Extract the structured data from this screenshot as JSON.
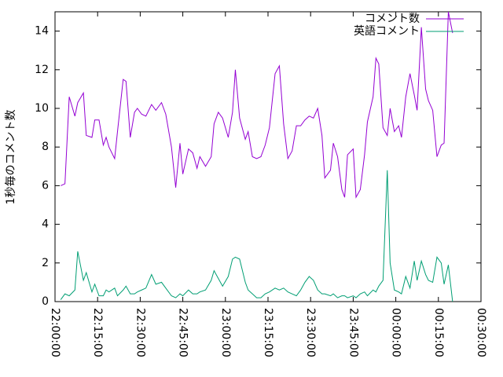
{
  "chart_data": {
    "type": "line",
    "ylabel": "1秒毎のコメント数",
    "x": [
      "22:02:00",
      "22:03:30",
      "22:05:00",
      "22:07:00",
      "22:08:00",
      "22:10:00",
      "22:11:00",
      "22:13:00",
      "22:14:00",
      "22:15:30",
      "22:17:00",
      "22:18:00",
      "22:19:00",
      "22:21:00",
      "22:22:00",
      "22:24:00",
      "22:25:00",
      "22:26:30",
      "22:28:00",
      "22:29:00",
      "22:30:30",
      "22:32:00",
      "22:34:00",
      "22:35:30",
      "22:37:30",
      "22:39:00",
      "22:41:00",
      "22:42:30",
      "22:44:00",
      "22:45:00",
      "22:47:00",
      "22:48:30",
      "22:50:00",
      "22:51:00",
      "22:53:00",
      "22:55:00",
      "22:56:00",
      "22:57:30",
      "22:59:00",
      "23:01:00",
      "23:02:30",
      "23:03:30",
      "23:05:00",
      "23:07:00",
      "23:08:00",
      "23:09:30",
      "23:11:00",
      "23:12:30",
      "23:14:00",
      "23:15:30",
      "23:17:30",
      "23:19:00",
      "23:20:30",
      "23:22:00",
      "23:23:30",
      "23:25:00",
      "23:26:30",
      "23:28:00",
      "23:29:30",
      "23:31:00",
      "23:32:30",
      "23:34:00",
      "23:35:00",
      "23:37:00",
      "23:38:00",
      "23:39:30",
      "23:41:00",
      "23:42:00",
      "23:43:00",
      "23:45:00",
      "23:46:00",
      "23:47:30",
      "23:49:00",
      "23:50:00",
      "23:52:00",
      "23:53:00",
      "23:54:00",
      "23:55:30",
      "23:57:00",
      "23:58:00",
      "23:59:30",
      "00:01:00",
      "00:02:00",
      "00:03:30",
      "00:05:00",
      "00:06:30",
      "00:07:30",
      "00:09:00",
      "00:10:30",
      "00:11:30",
      "00:13:00",
      "00:14:30",
      "00:16:00",
      "00:17:00",
      "00:18:30",
      "00:20:00"
    ],
    "series": [
      {
        "name": "コメント数",
        "color": "#9400d3",
        "values": [
          6.0,
          6.1,
          10.6,
          9.6,
          10.3,
          10.8,
          8.6,
          8.5,
          9.4,
          9.4,
          8.1,
          8.5,
          8.0,
          7.4,
          8.8,
          11.5,
          11.4,
          8.5,
          9.8,
          10.0,
          9.7,
          9.6,
          10.2,
          9.9,
          10.3,
          9.7,
          8.0,
          5.9,
          8.2,
          6.6,
          7.9,
          7.7,
          6.9,
          7.5,
          7.0,
          7.5,
          9.2,
          9.8,
          9.5,
          8.5,
          9.8,
          12.0,
          9.5,
          8.4,
          8.8,
          7.5,
          7.4,
          7.5,
          8.1,
          9.0,
          11.8,
          12.2,
          9.2,
          7.4,
          7.8,
          9.1,
          9.1,
          9.4,
          9.6,
          9.5,
          10.0,
          8.6,
          6.4,
          6.8,
          8.2,
          7.5,
          5.8,
          5.4,
          7.6,
          7.9,
          5.4,
          5.8,
          7.6,
          9.3,
          10.6,
          12.6,
          12.3,
          9.0,
          8.6,
          10.0,
          8.8,
          9.1,
          8.5,
          10.6,
          11.8,
          10.7,
          9.9,
          14.2,
          11.0,
          10.4,
          9.9,
          7.5,
          8.1,
          8.2,
          15.0,
          13.9
        ]
      },
      {
        "name": "英語コメント",
        "color": "#009e73",
        "values": [
          0.1,
          0.4,
          0.3,
          0.6,
          2.6,
          1.1,
          1.5,
          0.5,
          0.9,
          0.3,
          0.3,
          0.6,
          0.5,
          0.7,
          0.3,
          0.6,
          0.8,
          0.4,
          0.4,
          0.5,
          0.6,
          0.7,
          1.4,
          0.9,
          1.0,
          0.7,
          0.3,
          0.2,
          0.4,
          0.3,
          0.6,
          0.4,
          0.4,
          0.5,
          0.6,
          1.1,
          1.6,
          1.2,
          0.8,
          1.3,
          2.2,
          2.3,
          2.2,
          1.0,
          0.6,
          0.4,
          0.2,
          0.2,
          0.4,
          0.5,
          0.7,
          0.6,
          0.7,
          0.5,
          0.4,
          0.3,
          0.6,
          1.0,
          1.3,
          1.1,
          0.6,
          0.4,
          0.4,
          0.3,
          0.4,
          0.2,
          0.3,
          0.3,
          0.2,
          0.3,
          0.2,
          0.4,
          0.5,
          0.3,
          0.6,
          0.5,
          0.8,
          1.1,
          6.8,
          2.0,
          0.6,
          0.5,
          0.4,
          1.3,
          0.7,
          2.1,
          1.1,
          2.1,
          1.4,
          1.1,
          1.0,
          2.3,
          2.0,
          0.9,
          1.9,
          0
        ]
      }
    ],
    "xlim": [
      "22:00:00",
      "00:30:00"
    ],
    "xticks": [
      "22:00:00",
      "22:15:00",
      "22:30:00",
      "22:45:00",
      "23:00:00",
      "23:15:00",
      "23:30:00",
      "23:45:00",
      "00:00:00",
      "00:15:00",
      "00:30:00"
    ],
    "ylim": [
      0,
      15
    ],
    "yticks": [
      0,
      2,
      4,
      6,
      8,
      10,
      12,
      14
    ],
    "grid": false,
    "legend": "top-right"
  }
}
